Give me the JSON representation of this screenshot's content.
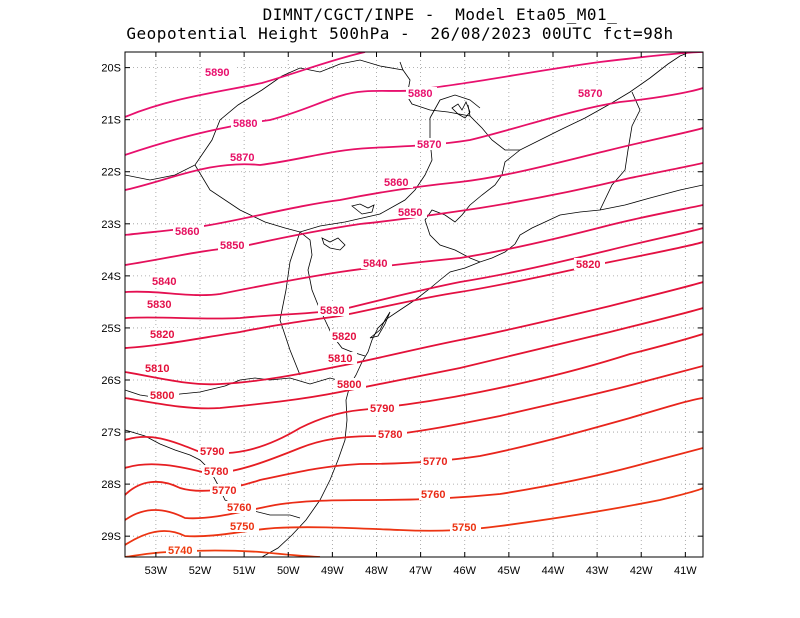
{
  "title": {
    "line1": "DIMNT/CGCT/INPE -  Model Eta05_M01_",
    "line2": "Geopotential Height 500hPa -  26/08/2023 00UTC fct=98h"
  },
  "map": {
    "lon_range": [
      -53.7,
      -40.6
    ],
    "lat_range": [
      -29.4,
      -19.7
    ],
    "x_ticks": [
      "53W",
      "52W",
      "51W",
      "50W",
      "49W",
      "48W",
      "47W",
      "46W",
      "45W",
      "44W",
      "43W",
      "42W",
      "41W"
    ],
    "y_ticks": [
      "20S",
      "21S",
      "22S",
      "23S",
      "24S",
      "25S",
      "26S",
      "27S",
      "28S",
      "29S"
    ],
    "grid_style": "dotted"
  },
  "contours": [
    {
      "value": 5890,
      "label": "5890",
      "color": "#e8106e"
    },
    {
      "value": 5880,
      "label": "5880",
      "color": "#e8106e"
    },
    {
      "value": 5870,
      "label": "5870",
      "color": "#e61066"
    },
    {
      "value": 5860,
      "label": "5860",
      "color": "#e51060"
    },
    {
      "value": 5850,
      "label": "5850",
      "color": "#e4105a"
    },
    {
      "value": 5840,
      "label": "5840",
      "color": "#e41052"
    },
    {
      "value": 5830,
      "label": "5830",
      "color": "#e3104a"
    },
    {
      "value": 5820,
      "label": "5820",
      "color": "#e31042"
    },
    {
      "value": 5810,
      "label": "5810",
      "color": "#e3103a"
    },
    {
      "value": 5800,
      "label": "5800",
      "color": "#e31432"
    },
    {
      "value": 5790,
      "label": "5790",
      "color": "#e5182a"
    },
    {
      "value": 5780,
      "label": "5780",
      "color": "#e61e22"
    },
    {
      "value": 5770,
      "label": "5770",
      "color": "#e8241c"
    },
    {
      "value": 5760,
      "label": "5760",
      "color": "#ea2c16"
    },
    {
      "value": 5750,
      "label": "5750",
      "color": "#ec3412"
    },
    {
      "value": 5740,
      "label": "5740",
      "color": "#ee3c10"
    }
  ]
}
